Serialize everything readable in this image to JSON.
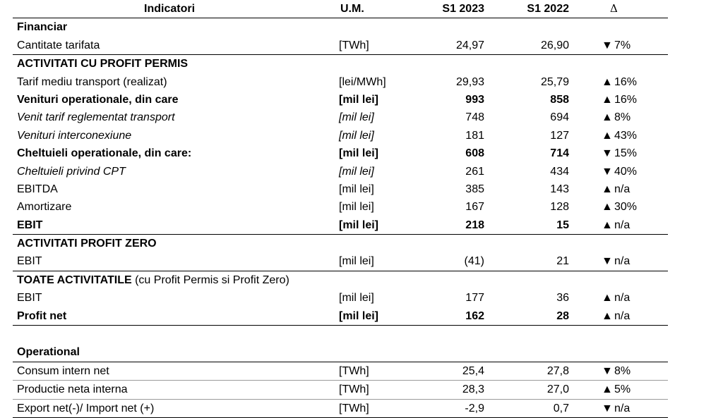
{
  "header": {
    "indicator": "Indicatori",
    "um": "U.M.",
    "s1_2023": "S1 2023",
    "s1_2022": "S1 2022",
    "delta": "Δ"
  },
  "rows": [
    {
      "type": "section",
      "label": "Financiar"
    },
    {
      "type": "data",
      "label": "Cantitate tarifata",
      "um": "[TWh]",
      "s23": "24,97",
      "s22": "26,90",
      "arrow": "▼",
      "delta": "7%",
      "border": "line"
    },
    {
      "type": "section",
      "label": "ACTIVITATI CU PROFIT PERMIS"
    },
    {
      "type": "data",
      "label": "Tarif mediu transport (realizat)",
      "um": "[lei/MWh]",
      "s23": "29,93",
      "s22": "25,79",
      "arrow": "▲",
      "delta": "16%"
    },
    {
      "type": "data",
      "style": "bold",
      "label": "Venituri operationale, din care",
      "um": "[mil lei]",
      "s23": "993",
      "s22": "858",
      "arrow": "▲",
      "delta": "16%"
    },
    {
      "type": "data",
      "style": "italic",
      "label": "Venit tarif reglementat transport",
      "um": "[mil lei]",
      "s23": "748",
      "s22": "694",
      "arrow": "▲",
      "delta": "8%"
    },
    {
      "type": "data",
      "style": "italic",
      "label": "Venituri interconexiune",
      "um": "[mil lei]",
      "s23": "181",
      "s22": "127",
      "arrow": "▲",
      "delta": "43%"
    },
    {
      "type": "data",
      "style": "bold",
      "label": "Cheltuieli operationale, din care:",
      "um": "[mil lei]",
      "s23": "608",
      "s22": "714",
      "arrow": "▼",
      "delta": "15%"
    },
    {
      "type": "data",
      "style": "italic",
      "label": "Cheltuieli privind CPT",
      "um": "[mil lei]",
      "s23": "261",
      "s22": "434",
      "arrow": "▼",
      "delta": "40%"
    },
    {
      "type": "data",
      "label": "EBITDA",
      "um": "[mil lei]",
      "s23": "385",
      "s22": "143",
      "arrow": "▲",
      "delta": "n/a"
    },
    {
      "type": "data",
      "label": "Amortizare",
      "um": "[mil lei]",
      "s23": "167",
      "s22": "128",
      "arrow": "▲",
      "delta": "30%"
    },
    {
      "type": "data",
      "style": "bold",
      "label": "EBIT",
      "um": "[mil lei]",
      "s23": "218",
      "s22": "15",
      "arrow": "▲",
      "delta": "n/a",
      "border": "line"
    },
    {
      "type": "section",
      "label": "ACTIVITATI PROFIT ZERO"
    },
    {
      "type": "data",
      "label": "EBIT",
      "um": "[mil lei]",
      "s23": "(41)",
      "s22": "21",
      "arrow": "▼",
      "delta": "n/a",
      "border": "line"
    },
    {
      "type": "section",
      "label": "TOATE ACTIVITATILE",
      "sub": " (cu Profit Permis si Profit Zero)"
    },
    {
      "type": "data",
      "label": "EBIT",
      "um": "[mil lei]",
      "s23": "177",
      "s22": "36",
      "arrow": "▲",
      "delta": "n/a"
    },
    {
      "type": "data",
      "style": "bold",
      "label": "Profit net",
      "um": "[mil lei]",
      "s23": "162",
      "s22": "28",
      "arrow": "▲",
      "delta": "n/a",
      "border": "line"
    },
    {
      "type": "blank"
    },
    {
      "type": "section",
      "label": "Operational",
      "border": "line"
    },
    {
      "type": "data",
      "label": "Consum intern net",
      "um": "[TWh]",
      "s23": "25,4",
      "s22": "27,8",
      "arrow": "▼",
      "delta": "8%",
      "border": "light"
    },
    {
      "type": "data",
      "label": "Productie neta interna",
      "um": "[TWh]",
      "s23": "28,3",
      "s22": "27,0",
      "arrow": "▲",
      "delta": "5%",
      "border": "light"
    },
    {
      "type": "data",
      "label": "Export net(-)/ Import net (+)",
      "um": "[TWh]",
      "s23": "-2,9",
      "s22": "0,7",
      "arrow": "▼",
      "delta": "n/a",
      "border": "line"
    }
  ]
}
